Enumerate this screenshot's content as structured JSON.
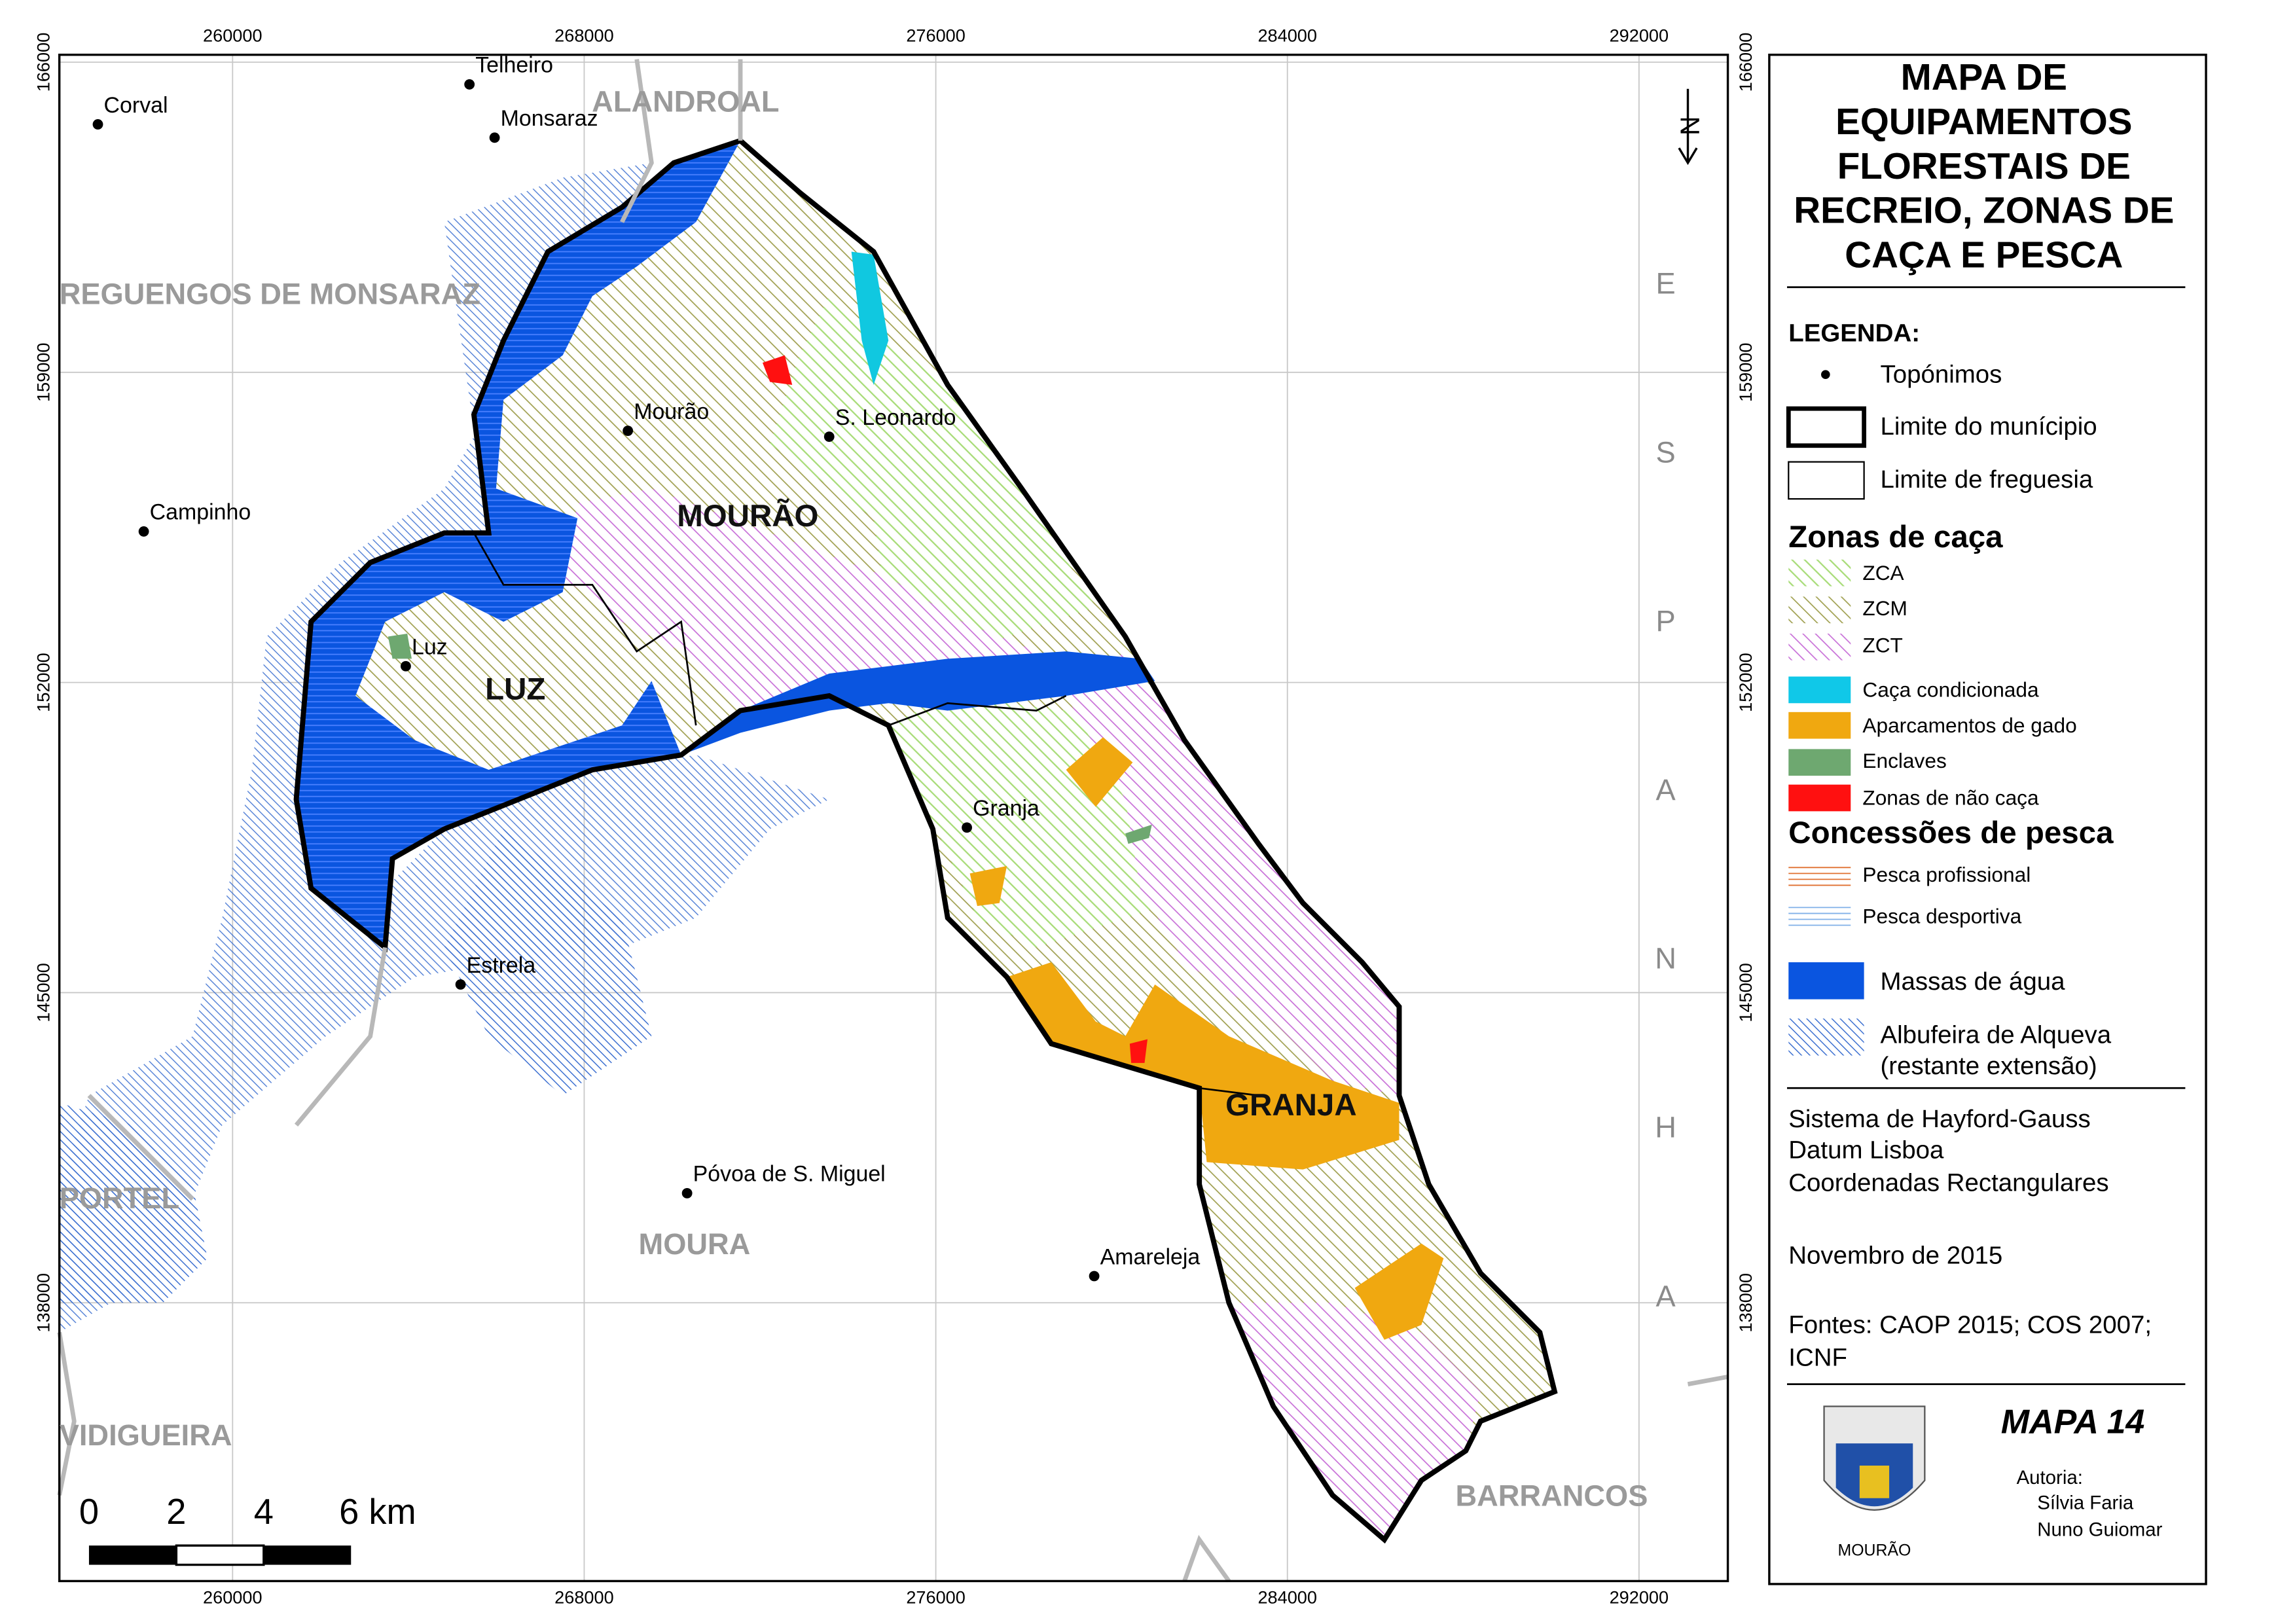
{
  "title_lines": [
    "MAPA DE",
    "EQUIPAMENTOS",
    "FLORESTAIS DE",
    "RECREIO, ZONAS DE",
    "CAÇA E PESCA"
  ],
  "legend": {
    "heading": "LEGENDA:",
    "basic": [
      "Topónimos",
      "Limite do munícipio",
      "Limite de freguesia"
    ],
    "hunting": {
      "heading": "Zonas de caça",
      "zones": [
        "ZCA",
        "ZCM",
        "ZCT"
      ],
      "other": [
        "Caça condicionada",
        "Aparcamentos de gado",
        "Enclaves",
        "Zonas de não caça"
      ]
    },
    "fishing": {
      "heading": "Concessões de pesca",
      "items": [
        "Pesca profissional",
        "Pesca desportiva"
      ]
    },
    "water": [
      "Massas de água",
      "Albufeira de Alqueva",
      "(restante extensão)"
    ]
  },
  "projection": [
    "Sistema de Hayford-Gauss",
    "Datum Lisboa",
    "Coordenadas Rectangulares"
  ],
  "date": "Novembro de 2015",
  "sources": [
    "Fontes: CAOP 2015; COS 2007;",
    "ICNF"
  ],
  "map_number": "MAPA 14",
  "authorship": {
    "heading": "Autoria:",
    "authors": [
      "Sílvia Faria",
      "Nuno Guiomar"
    ]
  },
  "coat_of_arms_label": "MOURÃO",
  "grid": {
    "x": [
      260000,
      268000,
      276000,
      284000,
      292000
    ],
    "y": [
      166000,
      159000,
      152000,
      145000,
      138000
    ]
  },
  "north": "N",
  "country": [
    "E",
    "S",
    "P",
    "A",
    "N",
    "H",
    "A"
  ],
  "parishes": [
    "MOURÃO",
    "LUZ",
    "GRANJA"
  ],
  "municipalities": [
    "ALANDROAL",
    "REGUENGOS DE MONSARAZ",
    "PORTEL",
    "MOURA",
    "VIDIGUEIRA",
    "BARRANCOS"
  ],
  "places": [
    "Corval",
    "Telheiro",
    "Monsaraz",
    "Mourão",
    "S. Leonardo",
    "Campinho",
    "Luz",
    "Granja",
    "Estrela",
    "Póvoa de S. Miguel",
    "Amareleja"
  ],
  "scale": [
    0,
    2,
    4,
    {
      "value": 6,
      "label": "6 km"
    }
  ]
}
